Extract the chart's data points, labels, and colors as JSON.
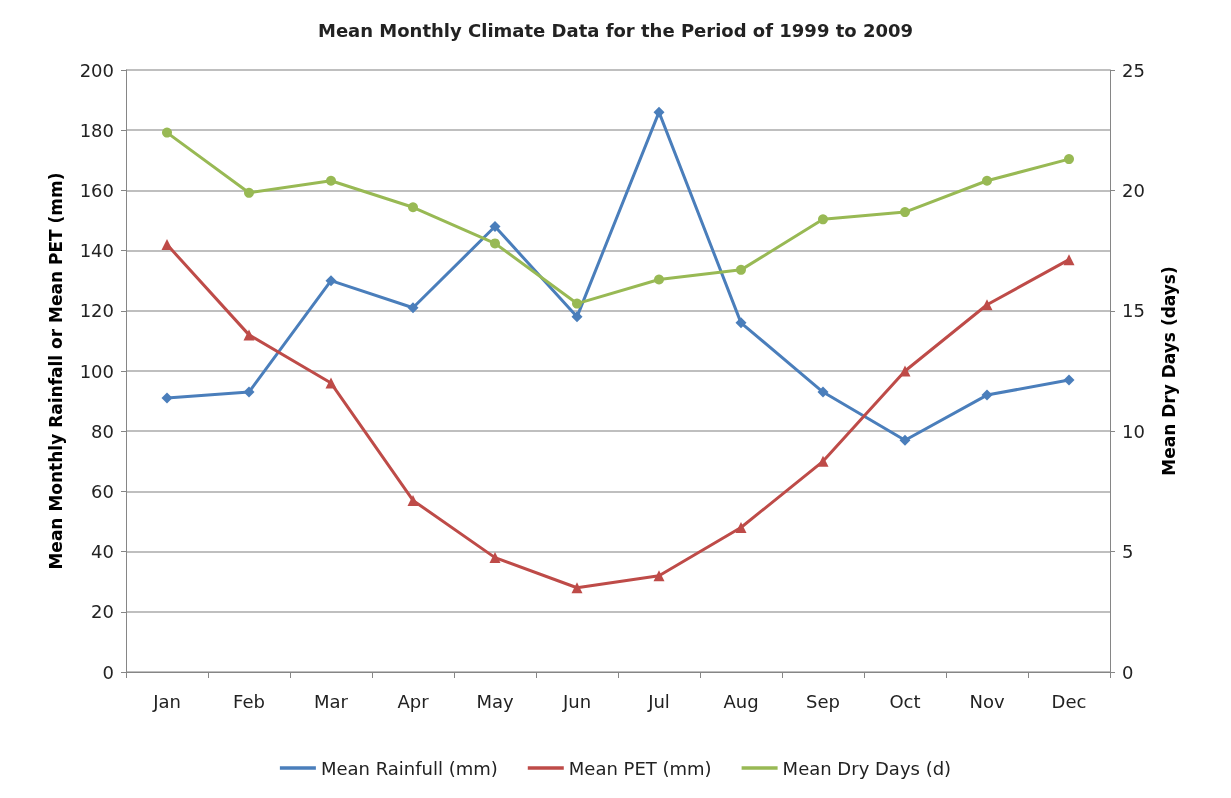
{
  "chart_data": {
    "type": "line",
    "title": "Mean Monthly Climate Data for the Period of 1999 to 2009",
    "ylabel": "Mean Monthly Rainfall or Mean PET (mm)",
    "y2label": "Mean Dry Days (days)",
    "categories": [
      "Jan",
      "Feb",
      "Mar",
      "Apr",
      "May",
      "Jun",
      "Jul",
      "Aug",
      "Sep",
      "Oct",
      "Nov",
      "Dec"
    ],
    "series": [
      {
        "name": "Mean Rainfull (mm)",
        "color": "#4a7ebb",
        "marker": "diamond",
        "values": [
          91,
          93,
          130,
          121,
          148,
          118,
          186,
          116,
          93,
          77,
          92,
          97
        ]
      },
      {
        "name": "Mean PET (mm)",
        "color": "#be4b48",
        "marker": "triangle",
        "values": [
          142,
          112,
          96,
          57,
          38,
          28,
          32,
          48,
          70,
          100,
          122,
          137
        ]
      },
      {
        "name": "Mean Dry Days (d)",
        "color": "#98b954",
        "marker": "circle",
        "axis": "y2",
        "values": [
          22.4,
          19.9,
          20.4,
          19.3,
          17.8,
          15.3,
          16.3,
          16.7,
          18.8,
          19.1,
          20.4,
          21.3
        ]
      }
    ],
    "ylim": [
      0,
      200
    ],
    "yticks": [
      0,
      20,
      40,
      60,
      80,
      100,
      120,
      140,
      160,
      180,
      200
    ],
    "y2lim": [
      0,
      25
    ],
    "y2ticks": [
      0,
      5,
      10,
      15,
      20,
      25
    ],
    "grid": "y",
    "legend": "bottom",
    "line_style": "solid"
  }
}
